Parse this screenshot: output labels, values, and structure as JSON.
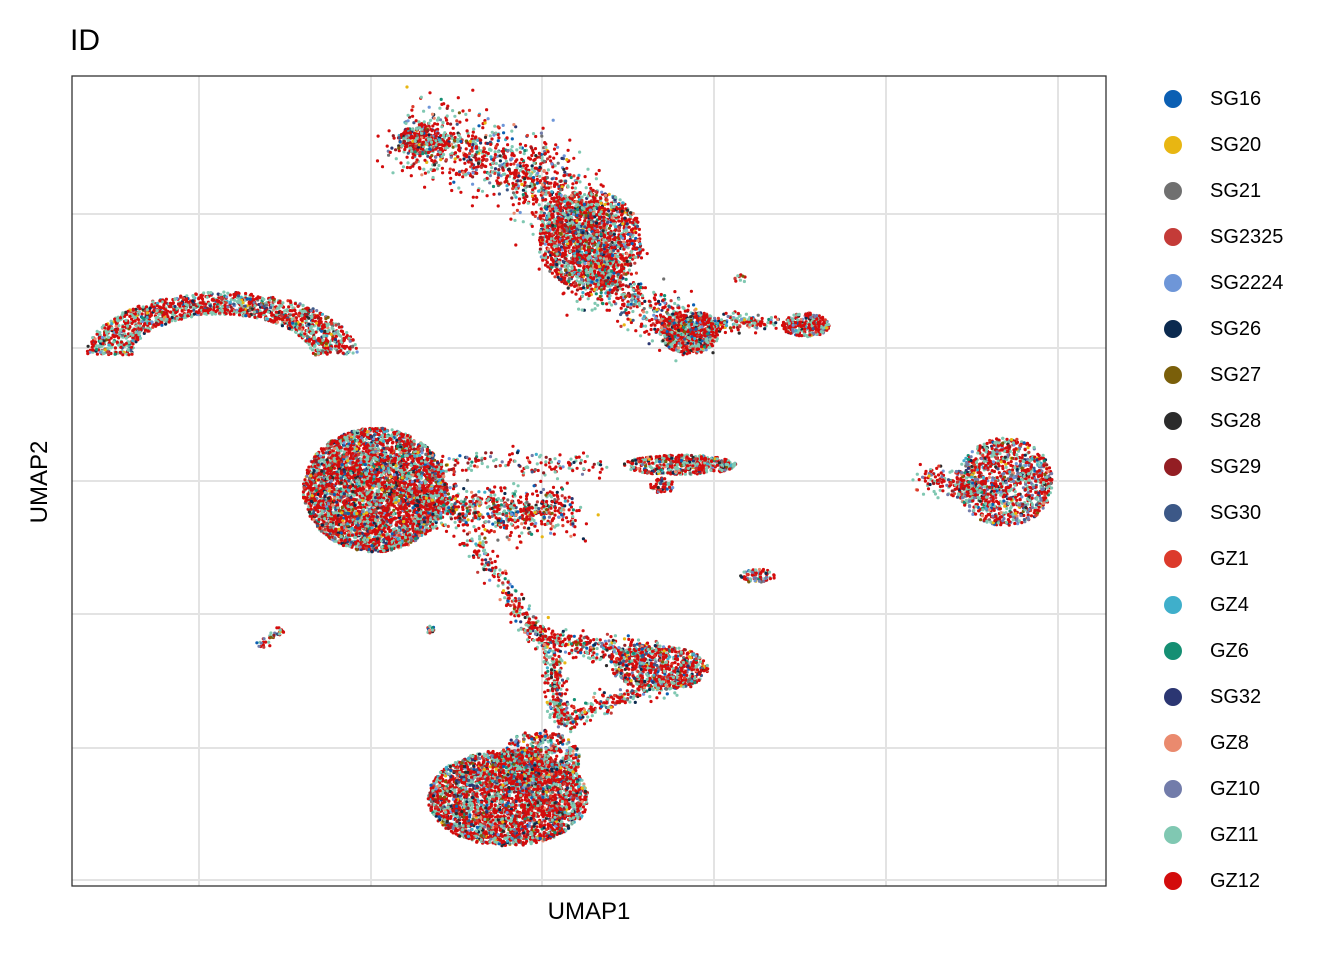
{
  "chart_data": {
    "type": "scatter",
    "title": "ID",
    "xlabel": "UMAP1",
    "ylabel": "UMAP2",
    "grid": true,
    "x_tick_labels": [],
    "y_tick_labels": [],
    "legend_position": "right",
    "legend": [
      {
        "name": "SG16",
        "color": "#0B5FB3"
      },
      {
        "name": "SG20",
        "color": "#E8B612"
      },
      {
        "name": "SG21",
        "color": "#707070"
      },
      {
        "name": "SG2325",
        "color": "#C43B38"
      },
      {
        "name": "SG2224",
        "color": "#6E96D8"
      },
      {
        "name": "SG26",
        "color": "#0B2A4F"
      },
      {
        "name": "SG27",
        "color": "#7A5F0A"
      },
      {
        "name": "SG28",
        "color": "#2B2B2B"
      },
      {
        "name": "SG29",
        "color": "#931E23"
      },
      {
        "name": "SG30",
        "color": "#3C5887"
      },
      {
        "name": "GZ1",
        "color": "#DC3A2B"
      },
      {
        "name": "GZ4",
        "color": "#3FAFCB"
      },
      {
        "name": "GZ6",
        "color": "#158F73"
      },
      {
        "name": "SG32",
        "color": "#2B3672"
      },
      {
        "name": "GZ8",
        "color": "#EA8A6E"
      },
      {
        "name": "GZ10",
        "color": "#727CAA"
      },
      {
        "name": "GZ11",
        "color": "#80C8B2"
      },
      {
        "name": "GZ12",
        "color": "#D30C0C"
      }
    ]
  }
}
